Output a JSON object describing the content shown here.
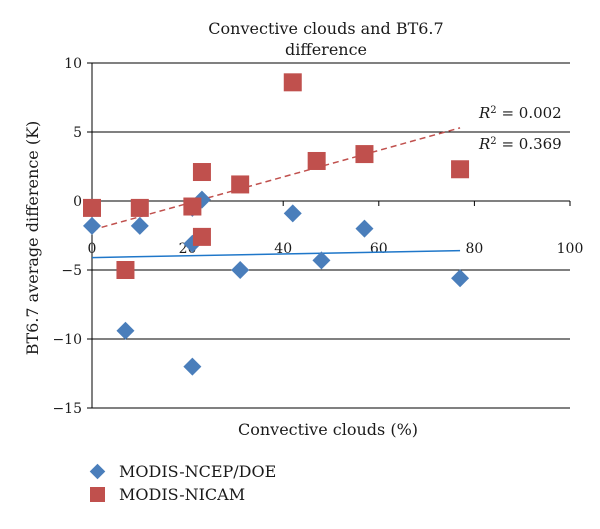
{
  "chart_data": {
    "type": "scatter",
    "title": "Convective clouds and BT6.7 difference",
    "title_lines": [
      "Convective clouds and BT6.7",
      "difference"
    ],
    "xlabel": "Convective clouds (%)",
    "ylabel": "BT6.7 average difference (K)",
    "xlim": [
      0,
      100
    ],
    "ylim": [
      -15,
      10
    ],
    "x_ticks": [
      0,
      20,
      40,
      60,
      80,
      100
    ],
    "y_ticks": [
      10,
      5,
      0,
      -5,
      -10,
      -15
    ],
    "grid": "horizontal",
    "legend_position": "bottom-left",
    "series": [
      {
        "name": "MODIS-NCEP/DOE",
        "marker": "diamond",
        "color": "#4a7ebb",
        "points": [
          {
            "x": 0,
            "y": -1.8
          },
          {
            "x": 7,
            "y": -9.4
          },
          {
            "x": 10,
            "y": -1.8
          },
          {
            "x": 21,
            "y": -12.0
          },
          {
            "x": 21,
            "y": -0.5
          },
          {
            "x": 21,
            "y": -3.1
          },
          {
            "x": 23,
            "y": 0.1
          },
          {
            "x": 31,
            "y": -5.0
          },
          {
            "x": 48,
            "y": -4.3
          },
          {
            "x": 42,
            "y": -0.9
          },
          {
            "x": 57,
            "y": -2.0
          },
          {
            "x": 77,
            "y": -5.6
          }
        ],
        "trendline": {
          "x": [
            0,
            77
          ],
          "y": [
            -4.1,
            -3.6
          ],
          "color": "#1f77c9",
          "style": "solid"
        }
      },
      {
        "name": "MODIS-NICAM",
        "marker": "square",
        "color": "#c0504d",
        "points": [
          {
            "x": 0,
            "y": -0.5
          },
          {
            "x": 7,
            "y": -5.0
          },
          {
            "x": 10,
            "y": -0.5
          },
          {
            "x": 21,
            "y": -0.4
          },
          {
            "x": 23,
            "y": -2.6
          },
          {
            "x": 23,
            "y": 2.1
          },
          {
            "x": 31,
            "y": 1.2
          },
          {
            "x": 42,
            "y": 8.6
          },
          {
            "x": 47,
            "y": 2.9
          },
          {
            "x": 57,
            "y": 3.4
          },
          {
            "x": 77,
            "y": 2.3
          }
        ],
        "trendline": {
          "x": [
            0,
            77
          ],
          "y": [
            -2.1,
            5.3
          ],
          "color": "#c0504d",
          "style": "dashed"
        }
      }
    ],
    "annotations": [
      {
        "label": "R",
        "sup": "2",
        "text": " = 0.002"
      },
      {
        "label": "R",
        "sup": "2",
        "text": " = 0.369"
      }
    ]
  }
}
